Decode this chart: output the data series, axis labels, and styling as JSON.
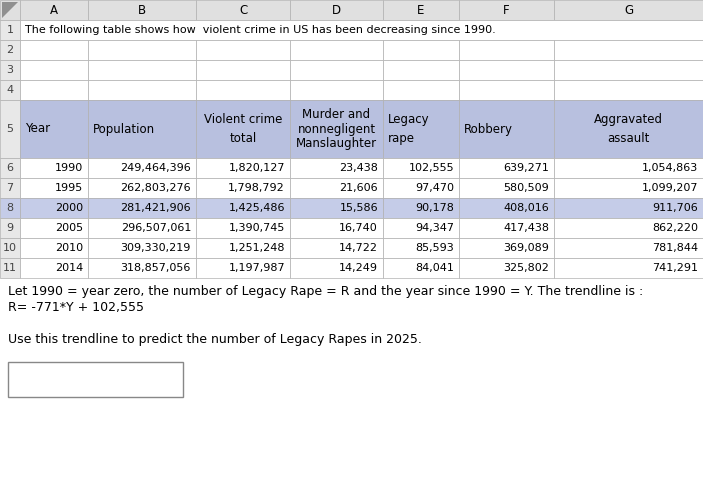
{
  "col_headers_top": [
    "A",
    "B",
    "C",
    "D",
    "E",
    "F",
    "G"
  ],
  "title_text": "The following table shows how  violent crime in US has been decreasing since 1990.",
  "data_rows": [
    {
      "year": "1990",
      "pop": "249,464,396",
      "vc": "1,820,127",
      "murder": "23,438",
      "legacy": "102,555",
      "robbery": "639,271",
      "agg": "1,054,863"
    },
    {
      "year": "1995",
      "pop": "262,803,276",
      "vc": "1,798,792",
      "murder": "21,606",
      "legacy": "97,470",
      "robbery": "580,509",
      "agg": "1,099,207"
    },
    {
      "year": "2000",
      "pop": "281,421,906",
      "vc": "1,425,486",
      "murder": "15,586",
      "legacy": "90,178",
      "robbery": "408,016",
      "agg": "911,706"
    },
    {
      "year": "2005",
      "pop": "296,507,061",
      "vc": "1,390,745",
      "murder": "16,740",
      "legacy": "94,347",
      "robbery": "417,438",
      "agg": "862,220"
    },
    {
      "year": "2010",
      "pop": "309,330,219",
      "vc": "1,251,248",
      "murder": "14,722",
      "legacy": "85,593",
      "robbery": "369,089",
      "agg": "781,844"
    },
    {
      "year": "2014",
      "pop": "318,857,056",
      "vc": "1,197,987",
      "murder": "14,249",
      "legacy": "84,041",
      "robbery": "325,802",
      "agg": "741,291"
    }
  ],
  "text1": "Let 1990 = year zero, the number of Legacy Rape = R and the year since 1990 = Y. The trendline is :",
  "text2": "R= -771*Y + 102,555",
  "text3": "Use this trendline to predict the number of Legacy Rapes in 2025.",
  "header_bg": "#b8c0df",
  "row8_bg": "#c5cce8",
  "white": "#ffffff",
  "cell_border": "#b0b0b0",
  "col_header_bg": "#e0e0e0",
  "row_num_bg": "#e8e8e8"
}
